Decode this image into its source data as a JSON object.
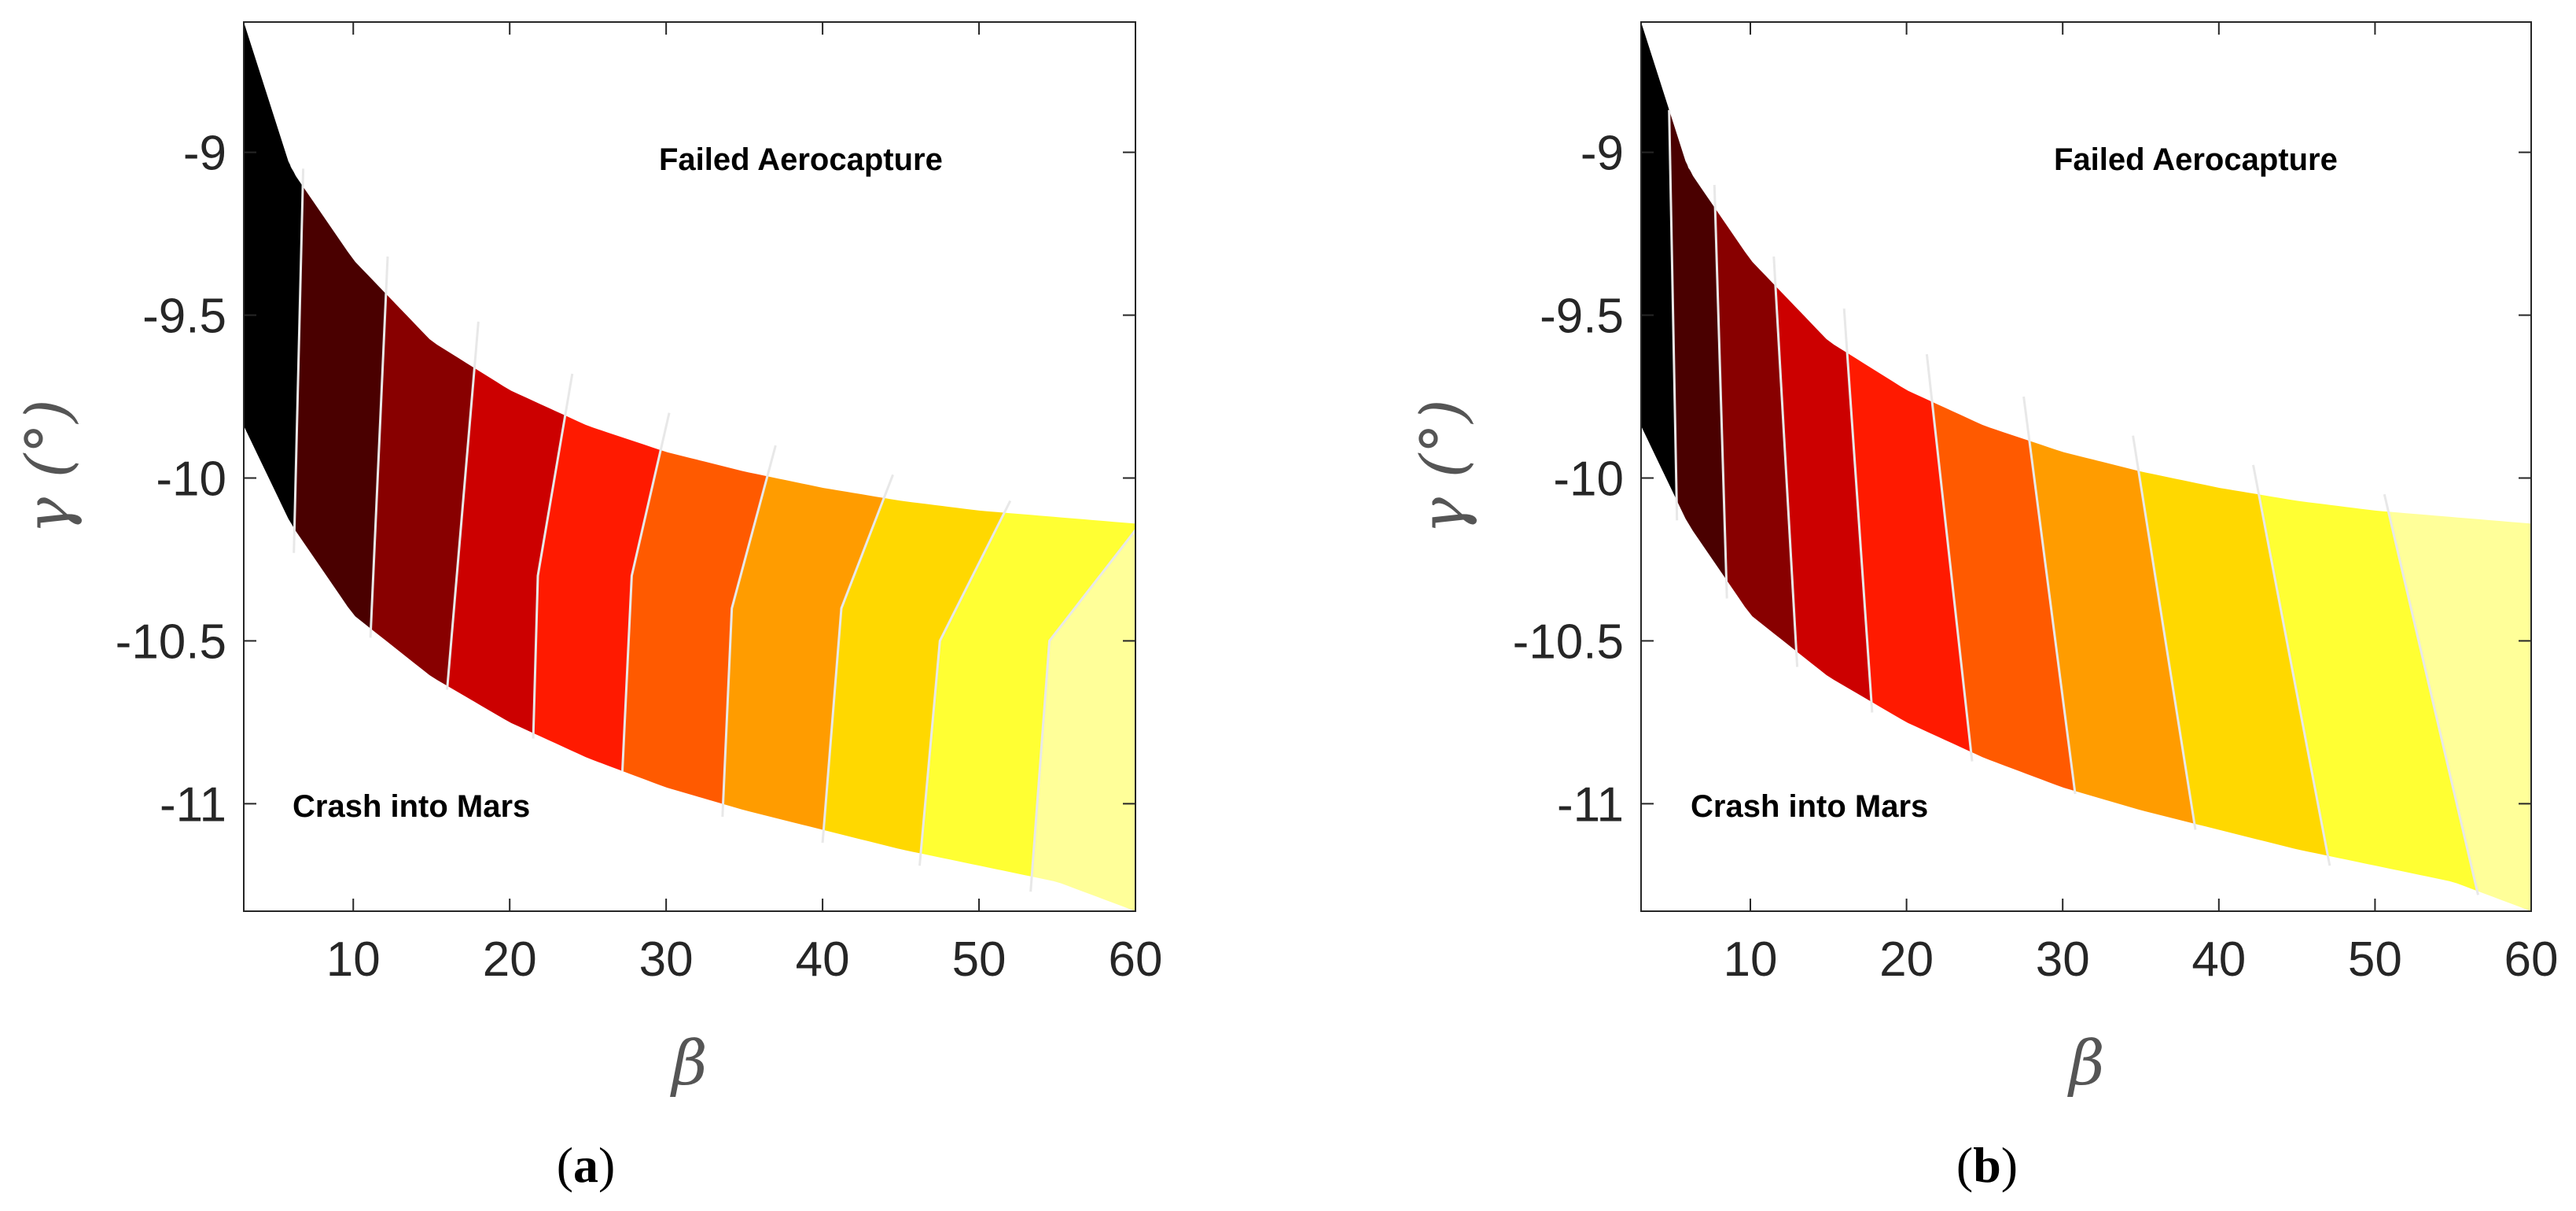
{
  "figure": {
    "panels": [
      {
        "caption_open": "(",
        "caption_letter": "a",
        "caption_close": ")",
        "annotation_upper": "Failed Aerocapture",
        "annotation_lower": "Crash into Mars"
      },
      {
        "caption_open": "(",
        "caption_letter": "b",
        "caption_close": ")",
        "annotation_upper": "Failed Aerocapture",
        "annotation_lower": "Crash into Mars"
      }
    ]
  },
  "colors": {
    "levels": [
      "#000000",
      "#4a0000",
      "#880000",
      "#cc0000",
      "#ff1a00",
      "#ff5a00",
      "#ff9c00",
      "#ffd800",
      "#ffff33",
      "#ffff99"
    ],
    "contour_line": "#e8e8e8",
    "axes": "#262626"
  },
  "chart_data": [
    {
      "type": "contour",
      "title": "",
      "xlabel": "β",
      "ylabel": "γ (°)",
      "xlim": [
        3,
        60
      ],
      "ylim": [
        -11.33,
        -8.6
      ],
      "xticks": [
        10,
        20,
        30,
        40,
        50,
        60
      ],
      "xtick_labels": [
        "10",
        "20",
        "30",
        "40",
        "50",
        "60"
      ],
      "yticks": [
        -9,
        -9.5,
        -10,
        -10.5,
        -11
      ],
      "ytick_labels": [
        "-9",
        "-9.5",
        "-10",
        "-10.5",
        "-11"
      ],
      "upper_boundary": {
        "beta": [
          3,
          6,
          10,
          15,
          20,
          25,
          30,
          35,
          40,
          45,
          50,
          55,
          60
        ],
        "gamma": [
          -8.6,
          -9.05,
          -9.33,
          -9.58,
          -9.73,
          -9.84,
          -9.92,
          -9.98,
          -10.03,
          -10.07,
          -10.1,
          -10.12,
          -10.14
        ]
      },
      "lower_boundary": {
        "beta": [
          3,
          6,
          10,
          15,
          20,
          25,
          30,
          35,
          40,
          45,
          50,
          55,
          60
        ],
        "gamma": [
          -9.84,
          -10.14,
          -10.42,
          -10.61,
          -10.75,
          -10.86,
          -10.95,
          -11.02,
          -11.08,
          -11.14,
          -11.19,
          -11.24,
          -11.33
        ]
      },
      "contour_lines": [
        {
          "beta": [
            6.8,
            6.2
          ],
          "gamma": [
            -9.05,
            -10.23
          ]
        },
        {
          "beta": [
            12.2,
            11.1
          ],
          "gamma": [
            -9.32,
            -10.49
          ]
        },
        {
          "beta": [
            18.0,
            16.0
          ],
          "gamma": [
            -9.52,
            -10.65
          ]
        },
        {
          "beta": [
            24.0,
            21.8,
            21.5
          ],
          "gamma": [
            -9.68,
            -10.3,
            -10.8
          ]
        },
        {
          "beta": [
            30.2,
            27.8,
            27.2
          ],
          "gamma": [
            -9.8,
            -10.3,
            -10.9
          ]
        },
        {
          "beta": [
            37.0,
            34.2,
            33.6
          ],
          "gamma": [
            -9.9,
            -10.4,
            -11.04
          ]
        },
        {
          "beta": [
            44.5,
            41.2,
            40.0
          ],
          "gamma": [
            -9.99,
            -10.4,
            -11.12
          ]
        },
        {
          "beta": [
            52.0,
            47.5,
            46.2
          ],
          "gamma": [
            -10.07,
            -10.5,
            -11.19
          ]
        },
        {
          "beta": [
            60.0,
            54.5,
            53.3
          ],
          "gamma": [
            -10.16,
            -10.5,
            -11.27
          ]
        }
      ]
    },
    {
      "type": "contour",
      "title": "",
      "xlabel": "β",
      "ylabel": "γ (°)",
      "xlim": [
        3,
        60
      ],
      "ylim": [
        -11.33,
        -8.6
      ],
      "xticks": [
        10,
        20,
        30,
        40,
        50,
        60
      ],
      "xtick_labels": [
        "10",
        "20",
        "30",
        "40",
        "50",
        "60"
      ],
      "yticks": [
        -9,
        -9.5,
        -10,
        -10.5,
        -11
      ],
      "ytick_labels": [
        "-9",
        "-9.5",
        "-10",
        "-10.5",
        "-11"
      ],
      "upper_boundary": {
        "beta": [
          3,
          6,
          10,
          15,
          20,
          25,
          30,
          35,
          40,
          45,
          50,
          55,
          60
        ],
        "gamma": [
          -8.6,
          -9.05,
          -9.33,
          -9.58,
          -9.73,
          -9.84,
          -9.92,
          -9.98,
          -10.03,
          -10.07,
          -10.1,
          -10.12,
          -10.14
        ]
      },
      "lower_boundary": {
        "beta": [
          3,
          6,
          10,
          15,
          20,
          25,
          30,
          35,
          40,
          45,
          50,
          55,
          60
        ],
        "gamma": [
          -9.84,
          -10.14,
          -10.42,
          -10.61,
          -10.75,
          -10.86,
          -10.95,
          -11.02,
          -11.08,
          -11.14,
          -11.19,
          -11.24,
          -11.33
        ]
      },
      "contour_lines": [
        {
          "beta": [
            4.8,
            5.3
          ],
          "gamma": [
            -8.87,
            -10.13
          ]
        },
        {
          "beta": [
            7.7,
            8.5
          ],
          "gamma": [
            -9.1,
            -10.37
          ]
        },
        {
          "beta": [
            11.5,
            13.0
          ],
          "gamma": [
            -9.32,
            -10.58
          ]
        },
        {
          "beta": [
            16.0,
            17.8
          ],
          "gamma": [
            -9.48,
            -10.72
          ]
        },
        {
          "beta": [
            21.3,
            24.2
          ],
          "gamma": [
            -9.62,
            -10.87
          ]
        },
        {
          "beta": [
            27.5,
            30.8
          ],
          "gamma": [
            -9.75,
            -10.97
          ]
        },
        {
          "beta": [
            34.5,
            38.5
          ],
          "gamma": [
            -9.87,
            -11.08
          ]
        },
        {
          "beta": [
            42.2,
            47.1
          ],
          "gamma": [
            -9.96,
            -11.19
          ]
        },
        {
          "beta": [
            50.6,
            56.6
          ],
          "gamma": [
            -10.05,
            -11.28
          ]
        }
      ]
    }
  ]
}
